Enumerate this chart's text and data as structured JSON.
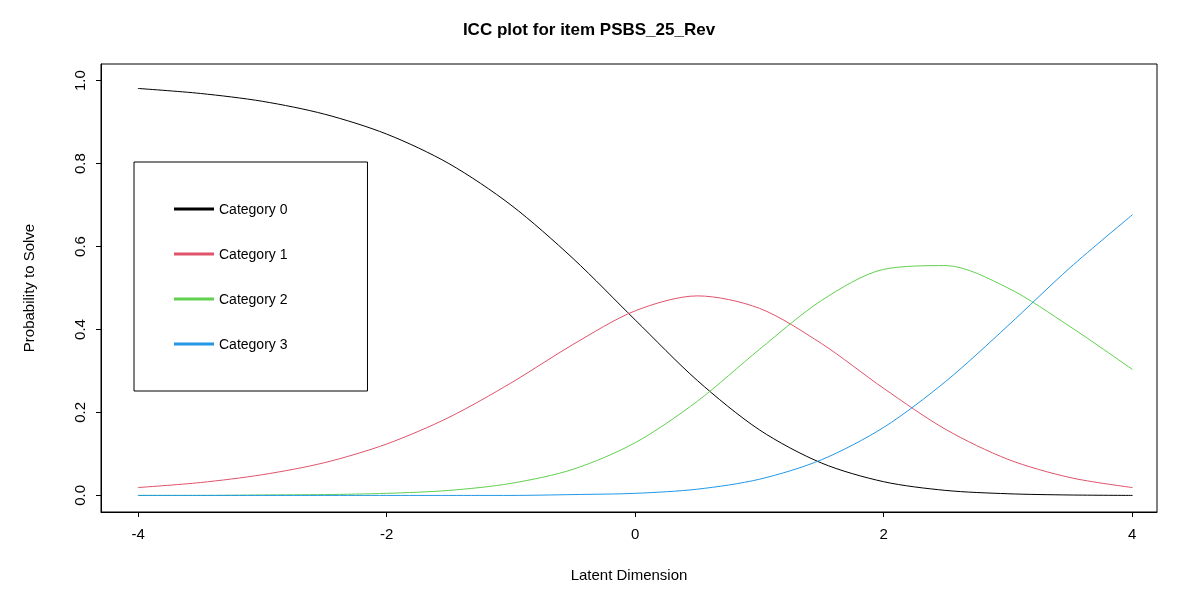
{
  "chart_data": {
    "type": "line",
    "title": "ICC plot for item PSBS_25_Rev",
    "xlabel": "Latent Dimension",
    "ylabel": "Probability to Solve",
    "x": [
      -4,
      -3.5,
      -3,
      -2.5,
      -2,
      -1.5,
      -1,
      -0.5,
      0,
      0.5,
      1,
      1.5,
      2,
      2.5,
      3,
      3.5,
      4
    ],
    "series": [
      {
        "name": "Category 0",
        "color": "#000000",
        "values": [
          0.981,
          0.969,
          0.95,
          0.919,
          0.871,
          0.8,
          0.7,
          0.571,
          0.423,
          0.277,
          0.158,
          0.078,
          0.033,
          0.012,
          0.004,
          0.001,
          0
        ]
      },
      {
        "name": "Category 1",
        "color": "#df536b",
        "values": [
          0.019,
          0.031,
          0.05,
          0.079,
          0.124,
          0.188,
          0.271,
          0.364,
          0.445,
          0.481,
          0.451,
          0.366,
          0.258,
          0.159,
          0.087,
          0.043,
          0.019
        ]
      },
      {
        "name": "Category 2",
        "color": "#61d04f",
        "values": [
          0,
          0,
          0.001,
          0.002,
          0.005,
          0.012,
          0.029,
          0.063,
          0.127,
          0.227,
          0.352,
          0.47,
          0.545,
          0.554,
          0.5,
          0.407,
          0.304
        ]
      },
      {
        "name": "Category 3",
        "color": "#2297e6",
        "values": [
          0,
          0,
          0,
          0,
          0,
          0,
          0,
          0.002,
          0.005,
          0.015,
          0.039,
          0.086,
          0.164,
          0.275,
          0.409,
          0.549,
          0.676
        ]
      }
    ],
    "xlim": [
      -4.3,
      4.2
    ],
    "ylim": [
      -0.04,
      1.04
    ],
    "xticks": [
      -4,
      -2,
      0,
      2,
      4
    ],
    "yticks": [
      {
        "value": 0,
        "label": "0.0"
      },
      {
        "value": 0.2,
        "label": "0.2"
      },
      {
        "value": 0.4,
        "label": "0.4"
      },
      {
        "value": 0.6,
        "label": "0.6"
      },
      {
        "value": 0.8,
        "label": "0.8"
      },
      {
        "value": 1,
        "label": "1.0"
      }
    ],
    "grid": false,
    "legend": "left",
    "marker": "none",
    "line_style": "solid"
  }
}
